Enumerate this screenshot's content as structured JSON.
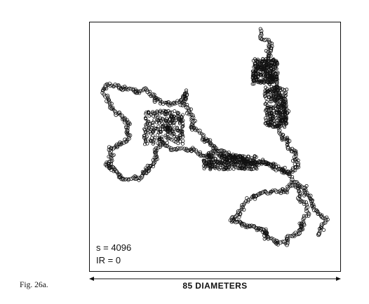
{
  "figure": {
    "label": "Fig. 26a.",
    "steps": "s = 4096",
    "ir": "IR = 0",
    "scale_label": "85 DIAMETERS",
    "ink_color": "#111111"
  }
}
